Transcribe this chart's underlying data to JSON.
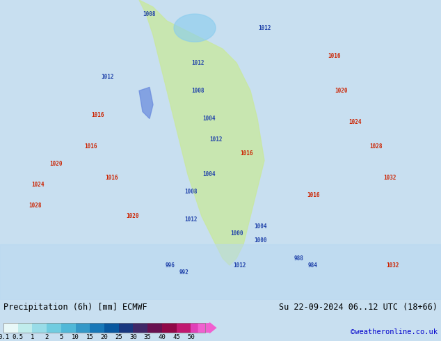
{
  "title_left": "Precipitation (6h) [mm] ECMWF",
  "title_right": "Su 22-09-2024 06..12 UTC (18+66)",
  "credit": "©weatheronline.co.uk",
  "colorbar_labels": [
    "0.1",
    "0.5",
    "1",
    "2",
    "5",
    "10",
    "15",
    "20",
    "25",
    "30",
    "35",
    "40",
    "45",
    "50"
  ],
  "colorbar_values": [
    0.1,
    0.5,
    1,
    2,
    5,
    10,
    15,
    20,
    25,
    30,
    35,
    40,
    45,
    50
  ],
  "colorbar_colors": [
    "#d4f5f5",
    "#b0e8e8",
    "#8dd8e8",
    "#6ec8e0",
    "#50b8d8",
    "#38a0d0",
    "#2080c0",
    "#1060a8",
    "#184898",
    "#302880",
    "#581068",
    "#800858",
    "#b01080",
    "#d020a0",
    "#e840c0",
    "#f060d8"
  ],
  "bg_color": "#c8dff0",
  "land_color": "#c8e8a0",
  "map_bg": "#d0e8f8",
  "fig_width": 6.34,
  "fig_height": 4.9,
  "dpi": 100
}
